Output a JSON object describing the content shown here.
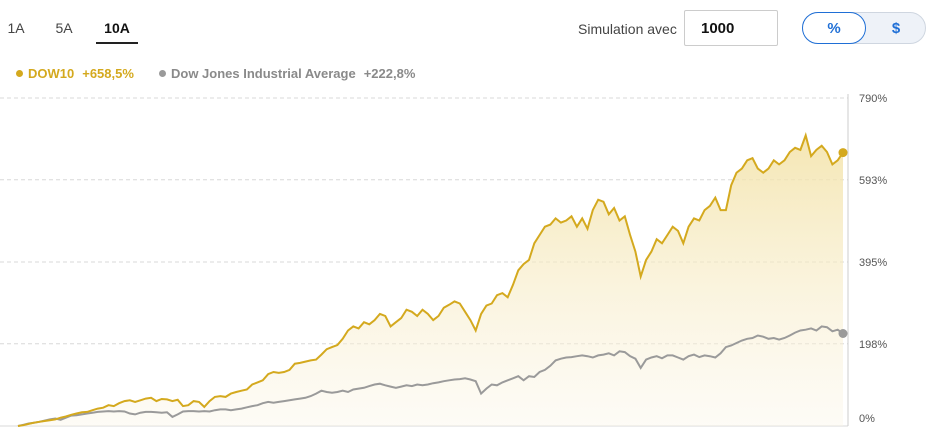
{
  "tabs": [
    {
      "label": "1A",
      "active": false
    },
    {
      "label": "5A",
      "active": false
    },
    {
      "label": "10A",
      "active": true
    }
  ],
  "simulation": {
    "label": "Simulation avec",
    "value": "1000"
  },
  "toggle": {
    "percent": "%",
    "dollar": "$",
    "selected": "percent"
  },
  "legend": [
    {
      "name": "DOW10",
      "value": "+658,5%",
      "color": "#d4a91e"
    },
    {
      "name": "Dow Jones Industrial Average",
      "value": "+222,8%",
      "color": "#9a9a9a"
    }
  ],
  "chart_data": {
    "type": "area",
    "y_unit": "%",
    "ylim": [
      0,
      790
    ],
    "y_ticks": [
      "790%",
      "593%",
      "395%",
      "198%",
      "0%"
    ],
    "grid": true,
    "legend_position": "top-left",
    "series": [
      {
        "name": "DOW10",
        "color": "#d4a91e",
        "values": [
          0,
          2,
          5,
          8,
          10,
          12,
          14,
          16,
          20,
          23,
          27,
          30,
          33,
          34,
          38,
          42,
          44,
          50,
          48,
          55,
          60,
          62,
          58,
          62,
          66,
          68,
          60,
          65,
          64,
          60,
          63,
          48,
          50,
          60,
          58,
          46,
          60,
          70,
          72,
          70,
          78,
          82,
          85,
          88,
          100,
          105,
          110,
          125,
          130,
          128,
          130,
          135,
          150,
          152,
          155,
          158,
          160,
          172,
          185,
          190,
          195,
          210,
          230,
          240,
          235,
          250,
          245,
          255,
          270,
          265,
          240,
          250,
          260,
          280,
          275,
          265,
          280,
          270,
          255,
          265,
          285,
          292,
          300,
          295,
          275,
          255,
          230,
          270,
          290,
          295,
          315,
          320,
          310,
          340,
          375,
          390,
          400,
          440,
          460,
          480,
          485,
          500,
          490,
          495,
          505,
          480,
          500,
          475,
          520,
          545,
          540,
          510,
          525,
          495,
          505,
          460,
          420,
          360,
          400,
          420,
          450,
          440,
          460,
          480,
          470,
          440,
          480,
          500,
          495,
          520,
          530,
          550,
          520,
          520,
          580,
          610,
          620,
          640,
          645,
          620,
          610,
          620,
          640,
          630,
          640,
          660,
          670,
          665,
          700,
          650,
          665,
          675,
          660,
          630,
          640,
          658.5
        ]
      },
      {
        "name": "Dow Jones Industrial Average",
        "color": "#9a9a9a",
        "values": [
          0,
          3,
          6,
          8,
          10,
          13,
          16,
          18,
          15,
          20,
          25,
          26,
          28,
          30,
          32,
          34,
          35,
          36,
          35,
          36,
          35,
          30,
          28,
          32,
          34,
          34,
          33,
          32,
          33,
          22,
          28,
          35,
          36,
          36,
          35,
          36,
          35,
          38,
          40,
          40,
          38,
          40,
          42,
          45,
          48,
          50,
          55,
          58,
          56,
          58,
          60,
          62,
          64,
          66,
          68,
          72,
          78,
          85,
          82,
          80,
          82,
          85,
          82,
          88,
          90,
          92,
          96,
          100,
          102,
          98,
          95,
          92,
          95,
          98,
          96,
          100,
          98,
          100,
          103,
          105,
          108,
          110,
          112,
          113,
          115,
          112,
          108,
          78,
          90,
          100,
          98,
          105,
          110,
          115,
          120,
          110,
          120,
          118,
          130,
          135,
          145,
          158,
          162,
          165,
          166,
          168,
          170,
          168,
          165,
          170,
          172,
          175,
          170,
          180,
          178,
          168,
          162,
          140,
          160,
          165,
          168,
          163,
          170,
          170,
          165,
          160,
          168,
          172,
          166,
          170,
          168,
          165,
          175,
          190,
          194,
          200,
          206,
          210,
          212,
          218,
          215,
          210,
          212,
          208,
          212,
          218,
          225,
          230,
          232,
          235,
          230,
          240,
          238,
          228,
          232,
          222.8
        ]
      }
    ]
  }
}
